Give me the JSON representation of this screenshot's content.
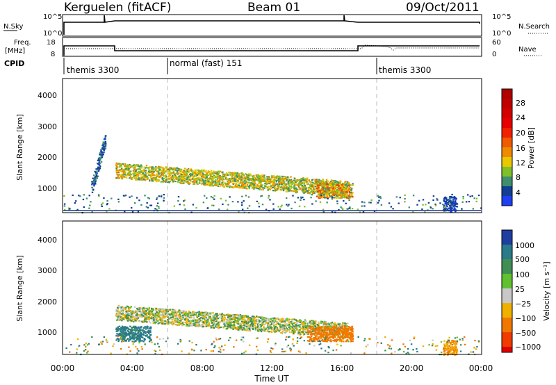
{
  "header": {
    "station": "Kerguelen (fitACF)",
    "beam": "Beam 01",
    "date": "09/Oct/2011"
  },
  "panels": {
    "nsky": {
      "label": "N.Sky",
      "tick_top": "10^5",
      "tick_bottom": "10^0"
    },
    "nsearch": {
      "label": "N.Search",
      "tick_top": "10^5",
      "tick_bottom": "10^0"
    },
    "freq": {
      "label_line1": "Freq.",
      "label_line2": "[MHz]",
      "tick_top": "18",
      "tick_bottom": "8"
    },
    "nave": {
      "label": "Nave",
      "tick_top": "60",
      "tick_bottom": "0"
    },
    "cpid": {
      "label": "CPID",
      "modes": [
        "themis 3300",
        "normal (fast) 151",
        "themis 3300"
      ]
    }
  },
  "chart_data": [
    {
      "type": "line",
      "title": "Beam 01",
      "series": [
        {
          "name": "N.Sky",
          "x": [
            0,
            2.5,
            3,
            6,
            12,
            16.3,
            17,
            24
          ],
          "y": [
            30000,
            30000,
            40000,
            40000,
            40000,
            40000,
            30000,
            30000
          ]
        },
        {
          "name": "Freq.",
          "x": [
            0,
            2.9,
            3,
            17.0,
            17.1,
            24
          ],
          "y": [
            13,
            13,
            10.8,
            10.8,
            13,
            13
          ]
        },
        {
          "name": "Nave",
          "x": [
            0,
            17.2,
            17.3,
            24
          ],
          "y": [
            30,
            30,
            42,
            34
          ]
        }
      ],
      "cpid_segments": [
        {
          "start": 0,
          "end": 6,
          "label": "themis 3300"
        },
        {
          "start": 6,
          "end": 18,
          "label": "normal (fast) 151"
        },
        {
          "start": 18,
          "end": 24,
          "label": "themis 3300"
        }
      ]
    },
    {
      "type": "heatmap",
      "xlabel": "Time UT",
      "ylabel": "Slant Range [km]",
      "colorbar_label": "Power [dB]",
      "colorbar_ticks": [
        "4",
        "8",
        "12",
        "16",
        "20",
        "24",
        "28"
      ],
      "xticks": [
        "00:00",
        "04:00",
        "08:00",
        "12:00",
        "16:00",
        "20:00",
        "00:00"
      ],
      "yticks": [
        "1000",
        "2000",
        "3000",
        "4000"
      ],
      "xlim_hours": [
        0,
        24
      ],
      "ylim_km": [
        200,
        4600
      ],
      "dashed_lines_hours": [
        6,
        18
      ],
      "regions": [
        {
          "name": "main echo band",
          "t_start": 3.0,
          "t_end": 16.3,
          "range_start_km": 1600,
          "range_end_km": 1000,
          "peak_db": 24
        },
        {
          "name": "late cluster",
          "t_start": 14.5,
          "t_end": 16.6,
          "range_km": 950,
          "peak_db": 28
        },
        {
          "name": "early vertical echoes",
          "t_start": 1.6,
          "t_end": 2.4,
          "range_start_km": 1000,
          "range_end_km": 2600,
          "peak_db": 10
        },
        {
          "name": "night echoes",
          "t_start": 21.8,
          "t_end": 22.6,
          "range_km": 500,
          "peak_db": 8
        }
      ]
    },
    {
      "type": "heatmap",
      "xlabel": "Time UT",
      "ylabel": "Slant Range [km]",
      "colorbar_label": "Velocity [m s⁻¹]",
      "colorbar_ticks": [
        "1000",
        "500",
        "100",
        "25",
        "−25",
        "−100",
        "−500",
        "−1000"
      ],
      "xticks": [
        "00:00",
        "04:00",
        "08:00",
        "12:00",
        "16:00",
        "20:00",
        "00:00"
      ],
      "yticks": [
        "1000",
        "2000",
        "3000",
        "4000"
      ],
      "xlim_hours": [
        0,
        24
      ],
      "ylim_km": [
        200,
        4600
      ],
      "dashed_lines_hours": [
        6,
        18
      ],
      "regions": [
        {
          "name": "main echo band",
          "t_start": 3.0,
          "t_end": 16.3,
          "range_start_km": 1600,
          "range_end_km": 1000,
          "velocity_ms": 0
        },
        {
          "name": "late cluster",
          "t_start": 14.0,
          "t_end": 16.6,
          "range_km": 900,
          "velocity_ms": -200
        },
        {
          "name": "early echoes",
          "t_start": 3.0,
          "t_end": 5.0,
          "range_km": 900,
          "velocity_ms": 150
        },
        {
          "name": "night echoes",
          "t_start": 21.8,
          "t_end": 22.6,
          "range_km": 450,
          "velocity_ms": -100
        }
      ]
    }
  ]
}
